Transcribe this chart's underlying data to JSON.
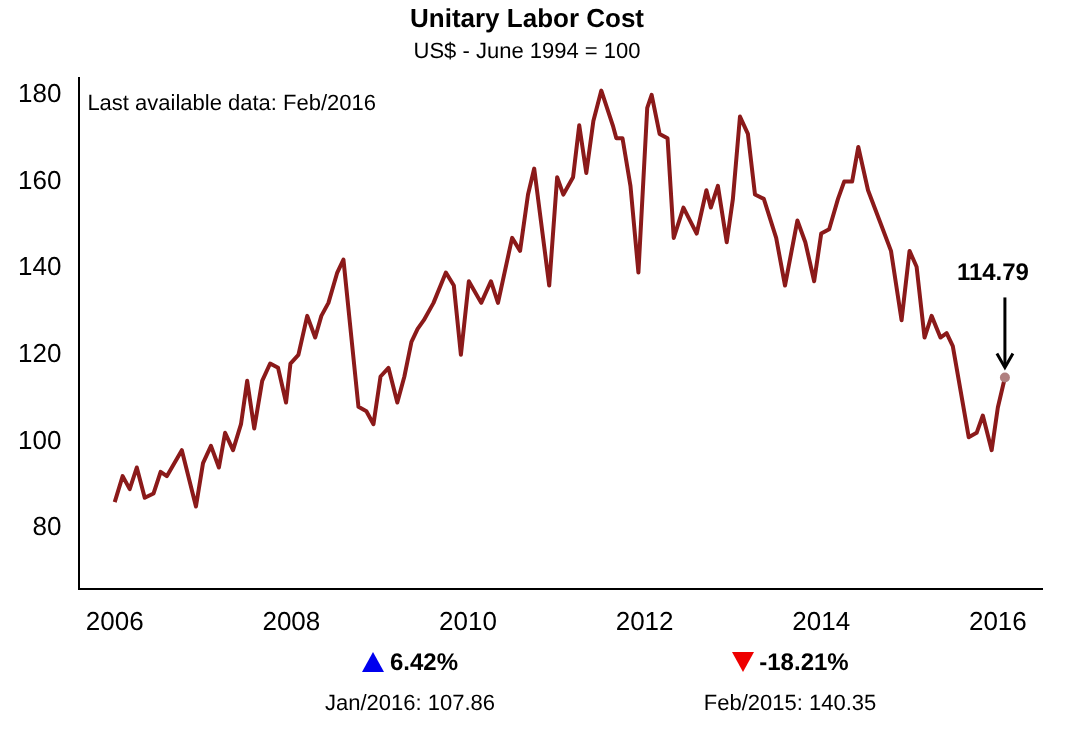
{
  "chart_data": {
    "type": "line",
    "title": "Unitary Labor Cost",
    "subtitle": "US$ - June 1994 = 100",
    "x": [
      2006.0,
      2006.09,
      2006.17,
      2006.25,
      2006.34,
      2006.44,
      2006.52,
      2006.59,
      2006.76,
      2006.92,
      2007.0,
      2007.09,
      2007.18,
      2007.25,
      2007.34,
      2007.43,
      2007.5,
      2007.58,
      2007.67,
      2007.76,
      2007.85,
      2007.94,
      2007.99,
      2008.08,
      2008.18,
      2008.27,
      2008.34,
      2008.42,
      2008.52,
      2008.59,
      2008.76,
      2008.85,
      2008.93,
      2009.01,
      2009.1,
      2009.2,
      2009.28,
      2009.36,
      2009.43,
      2009.5,
      2009.61,
      2009.75,
      2009.84,
      2009.92,
      2010.01,
      2010.15,
      2010.26,
      2010.34,
      2010.5,
      2010.59,
      2010.68,
      2010.75,
      2010.92,
      2011.01,
      2011.08,
      2011.19,
      2011.26,
      2011.34,
      2011.42,
      2011.51,
      2011.64,
      2011.68,
      2011.75,
      2011.84,
      2011.93,
      2012.03,
      2012.08,
      2012.17,
      2012.26,
      2012.33,
      2012.44,
      2012.59,
      2012.7,
      2012.75,
      2012.83,
      2012.93,
      2013.0,
      2013.08,
      2013.17,
      2013.25,
      2013.35,
      2013.49,
      2013.59,
      2013.73,
      2013.82,
      2013.92,
      2014.0,
      2014.09,
      2014.19,
      2014.26,
      2014.35,
      2014.42,
      2014.53,
      2014.66,
      2014.79,
      2014.91,
      2015.0,
      2015.08,
      2015.17,
      2015.25,
      2015.35,
      2015.42,
      2015.49,
      2015.67,
      2015.76,
      2015.83,
      2015.93,
      2016.0,
      2016.08
    ],
    "series": [
      {
        "color": "#8b1a1a",
        "values": [
          86,
          92,
          89,
          94,
          87,
          88,
          93,
          92,
          98,
          85,
          95,
          99,
          94,
          102,
          98,
          104,
          114,
          103,
          114,
          118,
          117,
          109,
          118,
          120,
          129,
          124,
          129,
          132,
          139,
          142,
          108,
          107,
          104,
          115,
          117,
          109,
          115,
          123,
          126,
          128,
          132,
          139,
          136,
          120,
          137,
          132,
          137,
          132,
          147,
          144,
          157,
          163,
          136,
          161,
          157,
          161,
          173,
          162,
          174,
          181,
          173,
          170,
          170,
          159,
          139,
          177,
          180,
          171,
          170,
          147,
          154,
          148,
          158,
          154,
          159,
          146,
          156,
          175,
          171,
          157,
          156,
          147,
          136,
          151,
          146,
          137,
          148,
          149,
          156,
          160,
          160,
          168,
          158,
          151,
          144,
          128,
          144,
          140.35,
          124,
          129,
          124,
          125,
          122,
          101,
          102,
          106,
          98,
          107.86,
          114.79
        ]
      }
    ],
    "xlim": [
      2005.6,
      2016.5
    ],
    "xticks": [
      2006,
      2008,
      2010,
      2012,
      2014,
      2016
    ],
    "ylim": [
      66,
      184
    ],
    "yticks": [
      80,
      100,
      120,
      140,
      160,
      180
    ],
    "grid": false,
    "legend": false,
    "marker": "none",
    "line_style": "solid",
    "annotations": [
      "Last available data: Feb/2016",
      {
        "text": "114.79",
        "x": 2016.08,
        "y": 114.79
      },
      "6.42%",
      "Jan/2016: 107.86",
      "-18.21%",
      "Feb/2015: 140.35"
    ]
  }
}
